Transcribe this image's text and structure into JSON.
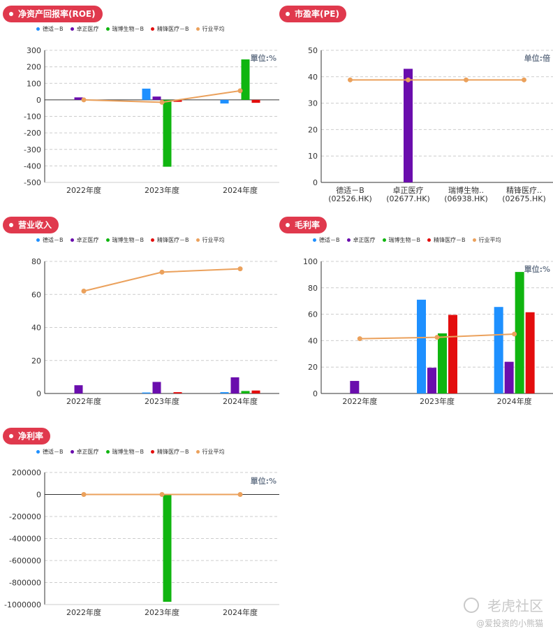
{
  "colors": {
    "badge": "#e0394d",
    "grid": "#cccccc",
    "axis": "#333333",
    "unit": "#6f7c8e"
  },
  "series_colors": [
    "#1e90ff",
    "#6a0dad",
    "#10b510",
    "#e30d0d",
    "#eba15c"
  ],
  "legend": [
    "德适－B",
    "卓正医疗",
    "瑞博生物－B",
    "精锋医疗－B",
    "行业平均"
  ],
  "watermark": {
    "logo": "老虎社区",
    "handle": "@爱投资的小熊猫"
  },
  "charts": {
    "roe": {
      "title": "净资产回报率(ROE)",
      "unit": "單位:%",
      "chart_data": {
        "type": "bar",
        "categories": [
          "2022年度",
          "2023年度",
          "2024年度"
        ],
        "series": [
          {
            "name": "德适－B",
            "values": [
              null,
              68,
              -22
            ]
          },
          {
            "name": "卓正医疗",
            "values": [
              15,
              20,
              null
            ]
          },
          {
            "name": "瑞博生物－B",
            "values": [
              null,
              -405,
              245
            ]
          },
          {
            "name": "精锋医疗－B",
            "values": [
              null,
              -12,
              -18
            ]
          }
        ],
        "line": {
          "name": "行业平均",
          "values": [
            0,
            -15,
            55
          ]
        },
        "yticks": [
          300,
          200,
          100,
          0,
          -100,
          -200,
          -300,
          -400,
          -500
        ],
        "ylim": [
          -500,
          300
        ]
      }
    },
    "pe": {
      "title": "市盈率(PE)",
      "unit": "单位:倍",
      "chart_data": {
        "type": "bar",
        "categories": [
          "德适－B",
          "卓正医疗",
          "瑞博生物..",
          "精锋医疗.."
        ],
        "sublabels": [
          "(02526.HK)",
          "(02677.HK)",
          "(06938.HK)",
          "(02675.HK)"
        ],
        "values": [
          null,
          43,
          null,
          null
        ],
        "bar_series": [
          0,
          1,
          2,
          3
        ],
        "line": {
          "name": "行业平均",
          "values": [
            38.8,
            38.8,
            38.8,
            38.8
          ]
        },
        "yticks": [
          50,
          40,
          30,
          20,
          10,
          0
        ],
        "ylim": [
          0,
          50
        ]
      }
    },
    "revenue": {
      "title": "营业收入",
      "unit": "",
      "chart_data": {
        "type": "bar",
        "categories": [
          "2022年度",
          "2023年度",
          "2024年度"
        ],
        "series": [
          {
            "name": "德适－B",
            "values": [
              null,
              0.6,
              0.8
            ]
          },
          {
            "name": "卓正医疗",
            "values": [
              5,
              7,
              9.8
            ]
          },
          {
            "name": "瑞博生物－B",
            "values": [
              null,
              null,
              1.5
            ]
          },
          {
            "name": "精锋医疗－B",
            "values": [
              null,
              0.8,
              1.8
            ]
          }
        ],
        "line": {
          "name": "行业平均",
          "values": [
            62,
            73.5,
            75.5
          ]
        },
        "yticks": [
          80,
          60,
          40,
          20,
          0
        ],
        "ylim": [
          0,
          80
        ]
      }
    },
    "gross": {
      "title": "毛利率",
      "unit": "單位:%",
      "chart_data": {
        "type": "bar",
        "categories": [
          "2022年度",
          "2023年度",
          "2024年度"
        ],
        "series": [
          {
            "name": "德适－B",
            "values": [
              null,
              71,
              65.5
            ]
          },
          {
            "name": "卓正医疗",
            "values": [
              9.5,
              19.5,
              24
            ]
          },
          {
            "name": "瑞博生物－B",
            "values": [
              null,
              45.5,
              92
            ]
          },
          {
            "name": "精锋医疗－B",
            "values": [
              null,
              59.5,
              61.5
            ]
          }
        ],
        "line": {
          "name": "行业平均",
          "values": [
            41.5,
            42.5,
            45
          ]
        },
        "yticks": [
          100,
          80,
          60,
          40,
          20,
          0
        ],
        "ylim": [
          0,
          100
        ]
      }
    },
    "net": {
      "title": "净利率",
      "unit": "單位:%",
      "chart_data": {
        "type": "bar",
        "categories": [
          "2022年度",
          "2023年度",
          "2024年度"
        ],
        "series": [
          {
            "name": "德适－B",
            "values": [
              null,
              null,
              null
            ]
          },
          {
            "name": "卓正医疗",
            "values": [
              null,
              null,
              null
            ]
          },
          {
            "name": "瑞博生物－B",
            "values": [
              null,
              -975000,
              null
            ]
          },
          {
            "name": "精锋医疗－B",
            "values": [
              null,
              null,
              null
            ]
          }
        ],
        "line": {
          "name": "行业平均",
          "values": [
            0,
            0,
            0
          ]
        },
        "yticks": [
          200000,
          0,
          -200000,
          -400000,
          -600000,
          -800000,
          -1000000
        ],
        "ylim": [
          -1000000,
          200000
        ]
      }
    }
  }
}
